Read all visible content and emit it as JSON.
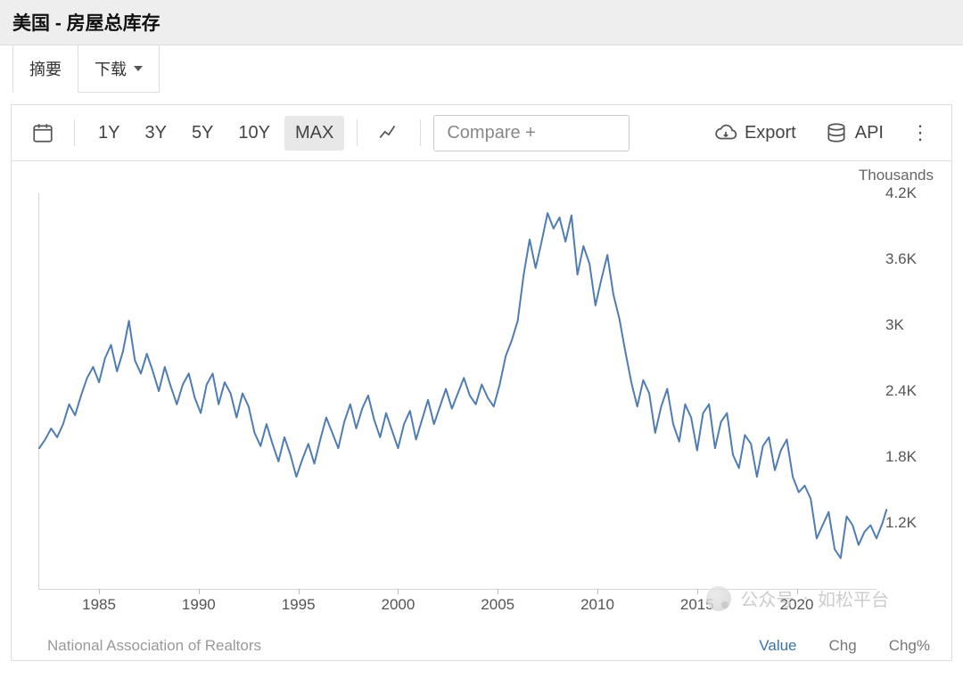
{
  "header": {
    "title": "美国 - 房屋总库存"
  },
  "tabs": {
    "summary": "摘要",
    "download": "下载"
  },
  "toolbar": {
    "ranges": [
      "1Y",
      "3Y",
      "5Y",
      "10Y",
      "MAX"
    ],
    "selected_range_index": 4,
    "compare_placeholder": "Compare +",
    "export_label": "Export",
    "api_label": "API"
  },
  "watermark": {
    "prefix": "公众号",
    "sep": "·",
    "name": "如松平台"
  },
  "chart": {
    "type": "line",
    "unit_label": "Thousands",
    "source": "National Association of Realtors",
    "line_color": "#4f7db3",
    "line_width": 2,
    "background_color": "#ffffff",
    "axis_color": "#d6d6d6",
    "tick_font_color": "#555555",
    "tick_fontsize": 17,
    "x_start_year": 1982,
    "x_end_year": 2024,
    "x_ticks": [
      1985,
      1990,
      1995,
      2000,
      2005,
      2010,
      2015,
      2020
    ],
    "y_min": 600,
    "y_max": 4200,
    "y_ticks": [
      1200,
      1800,
      2400,
      3000,
      3600,
      4200
    ],
    "y_tick_labels": [
      "1.2K",
      "1.8K",
      "2.4K",
      "3K",
      "3.6K",
      "4.2K"
    ],
    "value_tabs": {
      "value": "Value",
      "chg": "Chg",
      "chg_pct": "Chg%"
    },
    "series": [
      {
        "x": 1982.0,
        "y": 1880
      },
      {
        "x": 1982.3,
        "y": 1960
      },
      {
        "x": 1982.6,
        "y": 2060
      },
      {
        "x": 1982.9,
        "y": 1980
      },
      {
        "x": 1983.2,
        "y": 2100
      },
      {
        "x": 1983.5,
        "y": 2280
      },
      {
        "x": 1983.8,
        "y": 2180
      },
      {
        "x": 1984.1,
        "y": 2360
      },
      {
        "x": 1984.4,
        "y": 2520
      },
      {
        "x": 1984.7,
        "y": 2620
      },
      {
        "x": 1985.0,
        "y": 2480
      },
      {
        "x": 1985.3,
        "y": 2700
      },
      {
        "x": 1985.6,
        "y": 2820
      },
      {
        "x": 1985.9,
        "y": 2580
      },
      {
        "x": 1986.2,
        "y": 2760
      },
      {
        "x": 1986.5,
        "y": 3040
      },
      {
        "x": 1986.8,
        "y": 2680
      },
      {
        "x": 1987.1,
        "y": 2560
      },
      {
        "x": 1987.4,
        "y": 2740
      },
      {
        "x": 1987.7,
        "y": 2580
      },
      {
        "x": 1988.0,
        "y": 2400
      },
      {
        "x": 1988.3,
        "y": 2620
      },
      {
        "x": 1988.6,
        "y": 2440
      },
      {
        "x": 1988.9,
        "y": 2280
      },
      {
        "x": 1989.2,
        "y": 2460
      },
      {
        "x": 1989.5,
        "y": 2560
      },
      {
        "x": 1989.8,
        "y": 2340
      },
      {
        "x": 1990.1,
        "y": 2200
      },
      {
        "x": 1990.4,
        "y": 2460
      },
      {
        "x": 1990.7,
        "y": 2560
      },
      {
        "x": 1991.0,
        "y": 2280
      },
      {
        "x": 1991.3,
        "y": 2480
      },
      {
        "x": 1991.6,
        "y": 2380
      },
      {
        "x": 1991.9,
        "y": 2160
      },
      {
        "x": 1992.2,
        "y": 2380
      },
      {
        "x": 1992.5,
        "y": 2260
      },
      {
        "x": 1992.8,
        "y": 2020
      },
      {
        "x": 1993.1,
        "y": 1900
      },
      {
        "x": 1993.4,
        "y": 2100
      },
      {
        "x": 1993.7,
        "y": 1920
      },
      {
        "x": 1994.0,
        "y": 1760
      },
      {
        "x": 1994.3,
        "y": 1980
      },
      {
        "x": 1994.6,
        "y": 1820
      },
      {
        "x": 1994.9,
        "y": 1620
      },
      {
        "x": 1995.2,
        "y": 1780
      },
      {
        "x": 1995.5,
        "y": 1920
      },
      {
        "x": 1995.8,
        "y": 1740
      },
      {
        "x": 1996.1,
        "y": 1960
      },
      {
        "x": 1996.4,
        "y": 2160
      },
      {
        "x": 1996.7,
        "y": 2020
      },
      {
        "x": 1997.0,
        "y": 1880
      },
      {
        "x": 1997.3,
        "y": 2120
      },
      {
        "x": 1997.6,
        "y": 2280
      },
      {
        "x": 1997.9,
        "y": 2060
      },
      {
        "x": 1998.2,
        "y": 2240
      },
      {
        "x": 1998.5,
        "y": 2360
      },
      {
        "x": 1998.8,
        "y": 2140
      },
      {
        "x": 1999.1,
        "y": 1980
      },
      {
        "x": 1999.4,
        "y": 2200
      },
      {
        "x": 1999.7,
        "y": 2040
      },
      {
        "x": 2000.0,
        "y": 1880
      },
      {
        "x": 2000.3,
        "y": 2100
      },
      {
        "x": 2000.6,
        "y": 2220
      },
      {
        "x": 2000.9,
        "y": 1960
      },
      {
        "x": 2001.2,
        "y": 2140
      },
      {
        "x": 2001.5,
        "y": 2320
      },
      {
        "x": 2001.8,
        "y": 2100
      },
      {
        "x": 2002.1,
        "y": 2260
      },
      {
        "x": 2002.4,
        "y": 2420
      },
      {
        "x": 2002.7,
        "y": 2240
      },
      {
        "x": 2003.0,
        "y": 2380
      },
      {
        "x": 2003.3,
        "y": 2520
      },
      {
        "x": 2003.6,
        "y": 2360
      },
      {
        "x": 2003.9,
        "y": 2280
      },
      {
        "x": 2004.2,
        "y": 2460
      },
      {
        "x": 2004.5,
        "y": 2340
      },
      {
        "x": 2004.8,
        "y": 2260
      },
      {
        "x": 2005.1,
        "y": 2460
      },
      {
        "x": 2005.4,
        "y": 2720
      },
      {
        "x": 2005.7,
        "y": 2860
      },
      {
        "x": 2006.0,
        "y": 3040
      },
      {
        "x": 2006.3,
        "y": 3460
      },
      {
        "x": 2006.6,
        "y": 3780
      },
      {
        "x": 2006.9,
        "y": 3520
      },
      {
        "x": 2007.2,
        "y": 3760
      },
      {
        "x": 2007.5,
        "y": 4020
      },
      {
        "x": 2007.8,
        "y": 3880
      },
      {
        "x": 2008.1,
        "y": 3980
      },
      {
        "x": 2008.4,
        "y": 3760
      },
      {
        "x": 2008.7,
        "y": 4000
      },
      {
        "x": 2009.0,
        "y": 3460
      },
      {
        "x": 2009.3,
        "y": 3720
      },
      {
        "x": 2009.6,
        "y": 3560
      },
      {
        "x": 2009.9,
        "y": 3180
      },
      {
        "x": 2010.2,
        "y": 3420
      },
      {
        "x": 2010.5,
        "y": 3640
      },
      {
        "x": 2010.8,
        "y": 3280
      },
      {
        "x": 2011.1,
        "y": 3060
      },
      {
        "x": 2011.4,
        "y": 2760
      },
      {
        "x": 2011.7,
        "y": 2480
      },
      {
        "x": 2012.0,
        "y": 2260
      },
      {
        "x": 2012.3,
        "y": 2500
      },
      {
        "x": 2012.6,
        "y": 2380
      },
      {
        "x": 2012.9,
        "y": 2020
      },
      {
        "x": 2013.2,
        "y": 2260
      },
      {
        "x": 2013.5,
        "y": 2420
      },
      {
        "x": 2013.8,
        "y": 2100
      },
      {
        "x": 2014.1,
        "y": 1940
      },
      {
        "x": 2014.4,
        "y": 2280
      },
      {
        "x": 2014.7,
        "y": 2160
      },
      {
        "x": 2015.0,
        "y": 1860
      },
      {
        "x": 2015.3,
        "y": 2200
      },
      {
        "x": 2015.6,
        "y": 2280
      },
      {
        "x": 2015.9,
        "y": 1880
      },
      {
        "x": 2016.2,
        "y": 2120
      },
      {
        "x": 2016.5,
        "y": 2200
      },
      {
        "x": 2016.8,
        "y": 1820
      },
      {
        "x": 2017.1,
        "y": 1700
      },
      {
        "x": 2017.4,
        "y": 2000
      },
      {
        "x": 2017.7,
        "y": 1920
      },
      {
        "x": 2018.0,
        "y": 1620
      },
      {
        "x": 2018.3,
        "y": 1900
      },
      {
        "x": 2018.6,
        "y": 1980
      },
      {
        "x": 2018.9,
        "y": 1680
      },
      {
        "x": 2019.2,
        "y": 1860
      },
      {
        "x": 2019.5,
        "y": 1960
      },
      {
        "x": 2019.8,
        "y": 1620
      },
      {
        "x": 2020.1,
        "y": 1480
      },
      {
        "x": 2020.4,
        "y": 1540
      },
      {
        "x": 2020.7,
        "y": 1420
      },
      {
        "x": 2021.0,
        "y": 1060
      },
      {
        "x": 2021.3,
        "y": 1180
      },
      {
        "x": 2021.6,
        "y": 1300
      },
      {
        "x": 2021.9,
        "y": 960
      },
      {
        "x": 2022.2,
        "y": 880
      },
      {
        "x": 2022.5,
        "y": 1260
      },
      {
        "x": 2022.8,
        "y": 1180
      },
      {
        "x": 2023.1,
        "y": 1000
      },
      {
        "x": 2023.4,
        "y": 1120
      },
      {
        "x": 2023.7,
        "y": 1180
      },
      {
        "x": 2024.0,
        "y": 1060
      },
      {
        "x": 2024.3,
        "y": 1200
      },
      {
        "x": 2024.5,
        "y": 1320
      }
    ]
  }
}
